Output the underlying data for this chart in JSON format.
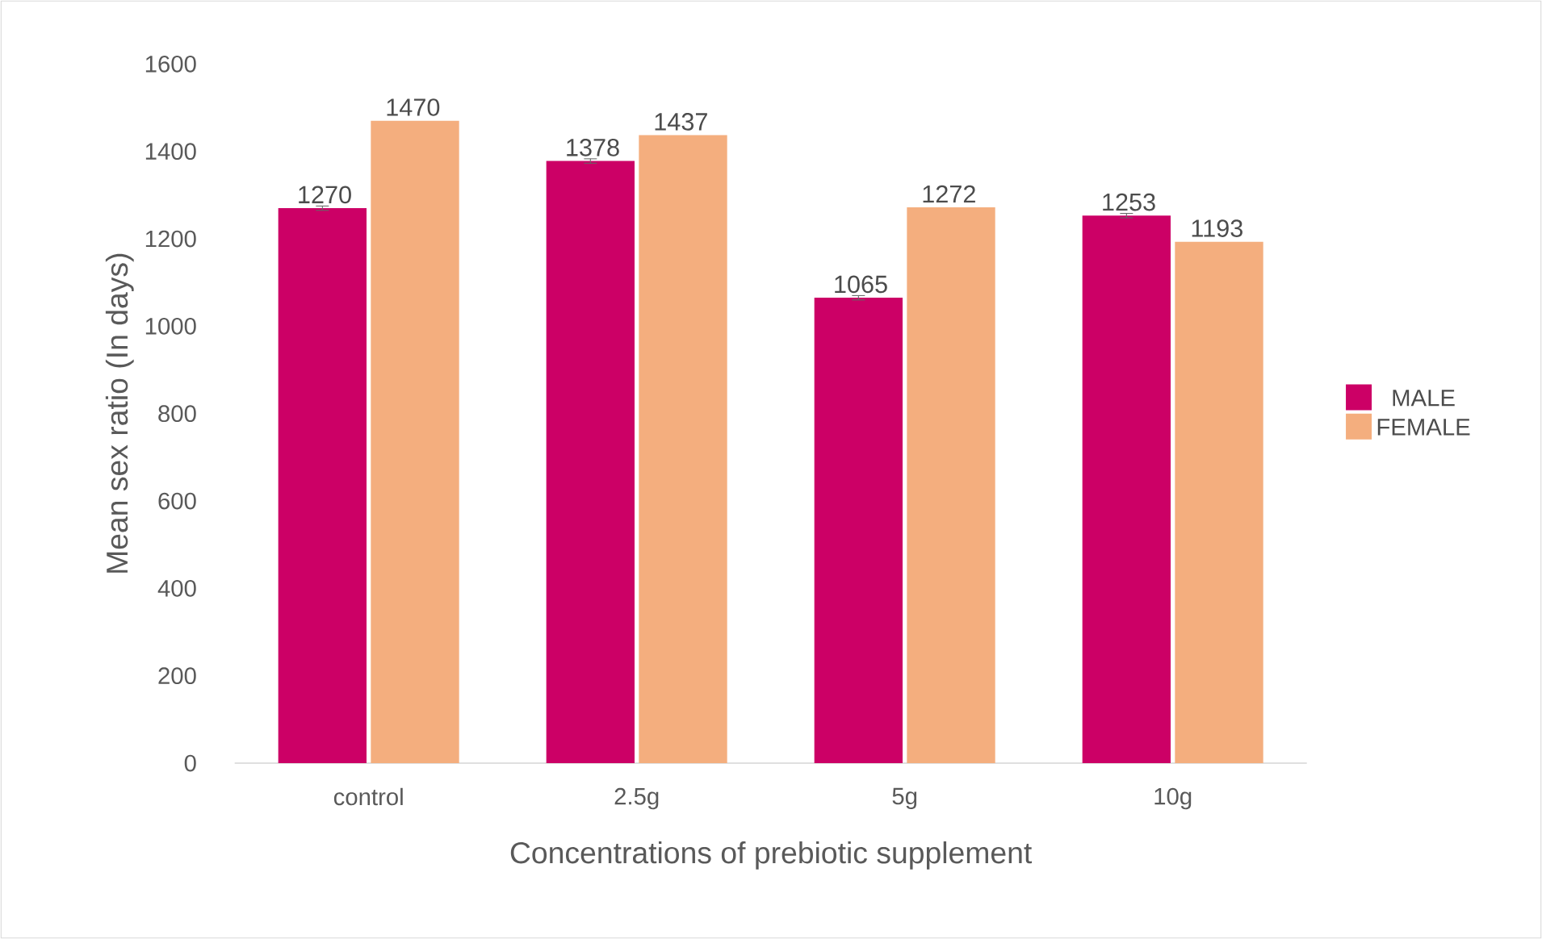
{
  "chart_data": {
    "type": "bar",
    "xlabel": "Concentrations of prebiotic supplement",
    "ylabel": "Mean sex ratio (In days)",
    "categories": [
      "control",
      "2.5g",
      "5g",
      "10g"
    ],
    "series": [
      {
        "name": "MALE",
        "color": "#cc0066",
        "values": [
          1270,
          1378,
          1065,
          1253
        ],
        "errors": [
          5,
          5,
          5,
          5
        ]
      },
      {
        "name": "FEMALE",
        "color": "#f4ae7e",
        "values": [
          1470,
          1437,
          1272,
          1193
        ]
      }
    ],
    "ylim": [
      0,
      1600
    ],
    "yticks": [
      0,
      200,
      400,
      600,
      800,
      1000,
      1200,
      1400,
      1600
    ],
    "grid": false,
    "legend": "right",
    "data_labels": true
  }
}
